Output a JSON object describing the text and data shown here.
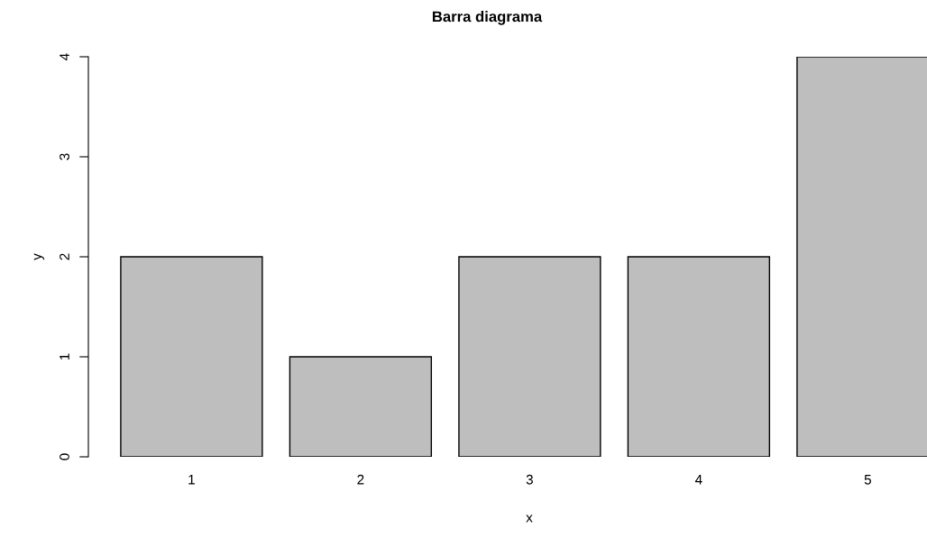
{
  "chart_data": {
    "type": "bar",
    "title": "Barra diagrama",
    "xlabel": "x",
    "ylabel": "y",
    "categories": [
      "1",
      "2",
      "3",
      "4",
      "5"
    ],
    "values": [
      2,
      1,
      2,
      2,
      4
    ],
    "color": "#bebebe",
    "ylim": [
      0,
      4
    ],
    "yticks": [
      0,
      1,
      2,
      3,
      4
    ],
    "grid": false
  }
}
